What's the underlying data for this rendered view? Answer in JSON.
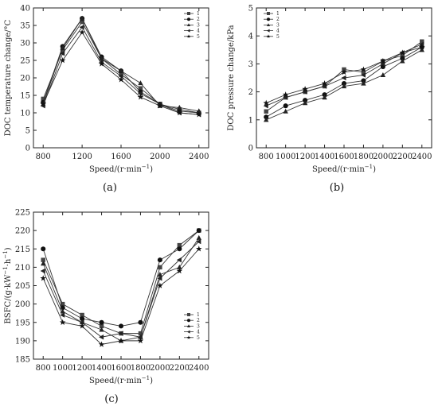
{
  "chart_data": [
    {
      "type": "line",
      "panel_label": "(a)",
      "xlabel": "Speed/(r·min",
      "xlabel_sup": "−1",
      "xlabel_end": ")",
      "ylabel": "DOC temperature change/°C",
      "x": [
        800,
        1200,
        1600,
        2000,
        2400
      ],
      "x_tick_labels": [
        "800",
        "1200",
        "1600",
        "2000",
        "2400"
      ],
      "xlim": [
        700,
        2500
      ],
      "ylim": [
        0,
        40
      ],
      "y_tick_labels": [
        "0",
        "5",
        "10",
        "15",
        "20",
        "25",
        "30",
        "35",
        "40"
      ],
      "legend_position": "top-right",
      "series": [
        {
          "name": "1",
          "marker": "square",
          "x": [
            800,
            1000,
            1200,
            1400,
            1600,
            1800,
            2000,
            2200,
            2400
          ],
          "values": [
            14,
            28,
            36,
            25.5,
            21,
            17,
            12.5,
            11,
            10
          ]
        },
        {
          "name": "2",
          "marker": "circle",
          "x": [
            800,
            1000,
            1200,
            1400,
            1600,
            1800,
            2000,
            2200,
            2400
          ],
          "values": [
            13,
            29,
            37,
            26,
            22,
            16,
            12.5,
            10.5,
            10
          ]
        },
        {
          "name": "3",
          "marker": "triangle-up",
          "x": [
            800,
            1000,
            1200,
            1400,
            1600,
            1800,
            2000,
            2200,
            2400
          ],
          "values": [
            12.5,
            28.5,
            37,
            25.5,
            22,
            18.5,
            12,
            11.5,
            10.5
          ]
        },
        {
          "name": "4",
          "marker": "triangle-left",
          "x": [
            800,
            1000,
            1200,
            1400,
            1600,
            1800,
            2000,
            2200,
            2400
          ],
          "values": [
            12,
            27,
            34.5,
            24.5,
            20.5,
            15.5,
            12.5,
            10,
            9.5
          ]
        },
        {
          "name": "5",
          "marker": "star",
          "x": [
            800,
            1000,
            1200,
            1400,
            1600,
            1800,
            2000,
            2200,
            2400
          ],
          "values": [
            12.5,
            25,
            33,
            24,
            19.5,
            14.5,
            12,
            10,
            9.5
          ]
        }
      ]
    },
    {
      "type": "line",
      "panel_label": "(b)",
      "xlabel": "Speed/(r·min",
      "xlabel_sup": "−1",
      "xlabel_end": ")",
      "ylabel": "DOC pressure change/kPa",
      "x": [
        800,
        1000,
        1200,
        1400,
        1600,
        1800,
        2000,
        2200,
        2400
      ],
      "x_tick_labels": [
        "800",
        "1000",
        "1200",
        "1400",
        "1600",
        "1800",
        "2000",
        "2200",
        "2400"
      ],
      "xlim": [
        700,
        2500
      ],
      "ylim": [
        0,
        5
      ],
      "y_tick_labels": [
        "0",
        "1",
        "2",
        "3",
        "4",
        "5"
      ],
      "legend_position": "top-left",
      "series": [
        {
          "name": "1",
          "marker": "square",
          "x": [
            800,
            1000,
            1200,
            1400,
            1600,
            1800,
            2000,
            2200,
            2400
          ],
          "values": [
            1.3,
            1.8,
            2.0,
            2.2,
            2.8,
            2.7,
            3.1,
            3.3,
            3.8
          ]
        },
        {
          "name": "2",
          "marker": "circle",
          "x": [
            800,
            1000,
            1200,
            1400,
            1600,
            1800,
            2000,
            2200,
            2400
          ],
          "values": [
            1.1,
            1.5,
            1.7,
            1.9,
            2.3,
            2.4,
            2.9,
            3.2,
            3.6
          ]
        },
        {
          "name": "3",
          "marker": "triangle-up",
          "x": [
            800,
            1000,
            1200,
            1400,
            1600,
            1800,
            2000,
            2200,
            2400
          ],
          "values": [
            1.0,
            1.3,
            1.6,
            1.8,
            2.2,
            2.3,
            2.6,
            3.1,
            3.5
          ]
        },
        {
          "name": "4",
          "marker": "triangle-left",
          "x": [
            800,
            1000,
            1200,
            1400,
            1600,
            1800,
            2000,
            2200,
            2400
          ],
          "values": [
            1.5,
            1.8,
            2.0,
            2.2,
            2.5,
            2.6,
            3.0,
            3.4,
            3.7
          ]
        },
        {
          "name": "5",
          "marker": "star",
          "x": [
            800,
            1000,
            1200,
            1400,
            1600,
            1800,
            2000,
            2200,
            2400
          ],
          "values": [
            1.6,
            1.9,
            2.1,
            2.3,
            2.7,
            2.8,
            3.1,
            3.4,
            3.6
          ]
        }
      ]
    },
    {
      "type": "line",
      "panel_label": "(c)",
      "xlabel": "Speed/(r·min",
      "xlabel_sup": "−1",
      "xlabel_end": ")",
      "ylabel": "BSFC/(g·kW",
      "ylabel_sup1": "−1",
      "ylabel_mid": "·h",
      "ylabel_sup2": "−1",
      "ylabel_end": ")",
      "x": [
        800,
        1000,
        1200,
        1400,
        1600,
        1800,
        2000,
        2200,
        2400
      ],
      "x_tick_labels": [
        "800",
        "1000",
        "1200",
        "1400",
        "1600",
        "1800",
        "2000",
        "2200",
        "2400"
      ],
      "xlim": [
        700,
        2500
      ],
      "ylim": [
        185,
        225
      ],
      "y_tick_labels": [
        "185",
        "190",
        "195",
        "200",
        "205",
        "210",
        "215",
        "220",
        "225"
      ],
      "legend_position": "bottom-right",
      "series": [
        {
          "name": "1",
          "marker": "square",
          "x": [
            800,
            1000,
            1200,
            1400,
            1600,
            1800,
            2000,
            2200,
            2400
          ],
          "values": [
            212,
            200,
            197,
            194,
            192,
            192,
            210,
            216,
            220
          ]
        },
        {
          "name": "2",
          "marker": "circle",
          "x": [
            800,
            1000,
            1200,
            1400,
            1600,
            1800,
            2000,
            2200,
            2400
          ],
          "values": [
            215,
            199,
            196,
            195,
            194,
            195,
            212,
            215,
            220
          ]
        },
        {
          "name": "3",
          "marker": "triangle-up",
          "x": [
            800,
            1000,
            1200,
            1400,
            1600,
            1800,
            2000,
            2200,
            2400
          ],
          "values": [
            211,
            198,
            195,
            193,
            190,
            191,
            208,
            210,
            218
          ]
        },
        {
          "name": "4",
          "marker": "triangle-left",
          "x": [
            800,
            1000,
            1200,
            1400,
            1600,
            1800,
            2000,
            2200,
            2400
          ],
          "values": [
            209,
            197,
            195,
            191,
            192,
            191,
            207,
            212,
            217
          ]
        },
        {
          "name": "5",
          "marker": "star",
          "x": [
            800,
            1000,
            1200,
            1400,
            1600,
            1800,
            2000,
            2200,
            2400
          ],
          "values": [
            207,
            195,
            194,
            189,
            190,
            190,
            205,
            209,
            215
          ]
        }
      ]
    }
  ]
}
